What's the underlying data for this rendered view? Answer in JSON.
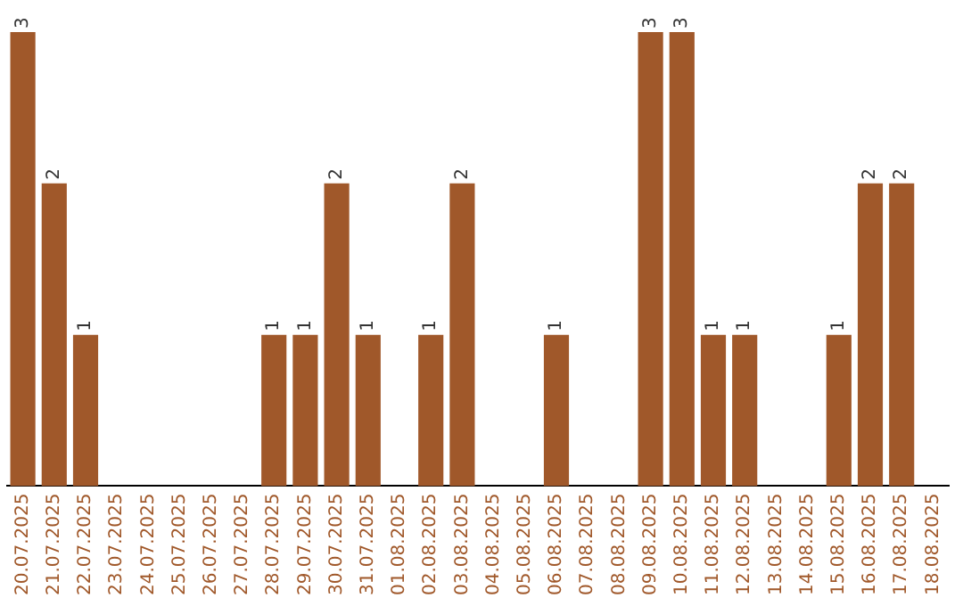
{
  "chart_data": {
    "type": "bar",
    "categories": [
      "20.07.2025",
      "21.07.2025",
      "22.07.2025",
      "23.07.2025",
      "24.07.2025",
      "25.07.2025",
      "26.07.2025",
      "27.07.2025",
      "28.07.2025",
      "29.07.2025",
      "30.07.2025",
      "31.07.2025",
      "01.08.2025",
      "02.08.2025",
      "03.08.2025",
      "04.08.2025",
      "05.08.2025",
      "06.08.2025",
      "07.08.2025",
      "08.08.2025",
      "09.08.2025",
      "10.08.2025",
      "11.08.2025",
      "12.08.2025",
      "13.08.2025",
      "14.08.2025",
      "15.08.2025",
      "16.08.2025",
      "17.08.2025",
      "18.08.2025"
    ],
    "values": [
      3,
      2,
      1,
      0,
      0,
      0,
      0,
      0,
      1,
      1,
      2,
      1,
      0,
      1,
      2,
      0,
      0,
      1,
      0,
      0,
      3,
      3,
      1,
      1,
      0,
      0,
      1,
      2,
      2,
      0
    ],
    "value_labels": [
      "3",
      "2",
      "1",
      null,
      null,
      null,
      null,
      null,
      "1",
      "1",
      "2",
      "1",
      null,
      "1",
      "2",
      null,
      null,
      "1",
      null,
      null,
      "3",
      "3",
      "1",
      "1",
      null,
      null,
      "1",
      "2",
      "2",
      null
    ],
    "color": "#a0582a",
    "grid": false,
    "legend": false,
    "tick_labels": "x"
  }
}
